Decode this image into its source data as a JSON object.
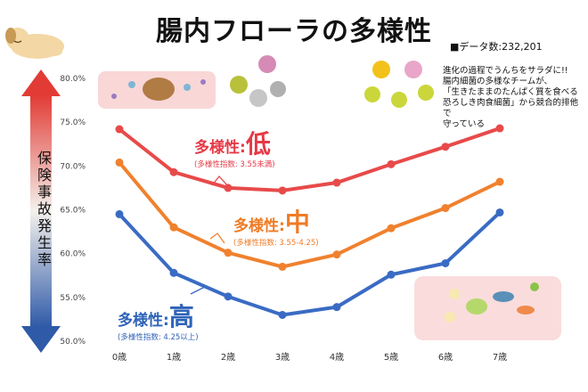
{
  "title": "腸内フローラの多様性",
  "data_count": "■データ数:232,201",
  "y_axis_label": "保険事故発生率",
  "note": "進化の過程でうんちをサラダに!!\n腸内細菌の多様なチームが、\n「生きたままのたんぱく質を食べる\n恐ろしき肉食細菌」から競合的排他で\n守っている",
  "labels": {
    "low": {
      "prefix": "多様性:",
      "char": "低",
      "sub": "(多様性指数: 3.55未満)"
    },
    "mid": {
      "prefix": "多様性:",
      "char": "中",
      "sub": "(多様性指数: 3.55-4.25)"
    },
    "high": {
      "prefix": "多様性:",
      "char": "高",
      "sub": "(多様性指数: 4.25以上)"
    }
  },
  "chart_data": {
    "type": "line",
    "title": "腸内フローラの多様性",
    "ylabel": "保険事故発生率",
    "categories": [
      "0歳",
      "1歳",
      "2歳",
      "3歳",
      "4歳",
      "5歳",
      "6歳",
      "7歳"
    ],
    "ylim": [
      50,
      80
    ],
    "yticks": [
      "50.0%",
      "55.0%",
      "60.0%",
      "65.0%",
      "70.0%",
      "75.0%",
      "80.0%"
    ],
    "grid": false,
    "series": [
      {
        "name": "多様性:低",
        "color": "#e84a4a",
        "values": [
          74.2,
          69.3,
          67.5,
          67.2,
          68.1,
          70.2,
          72.2,
          74.3
        ]
      },
      {
        "name": "多様性:中",
        "color": "#f0812e",
        "values": [
          70.4,
          63.0,
          60.1,
          58.5,
          59.9,
          62.9,
          65.2,
          68.2
        ]
      },
      {
        "name": "多様性:高",
        "color": "#3a6bc4",
        "values": [
          64.5,
          57.8,
          55.1,
          53.0,
          53.9,
          57.6,
          58.9,
          64.7
        ]
      }
    ]
  }
}
